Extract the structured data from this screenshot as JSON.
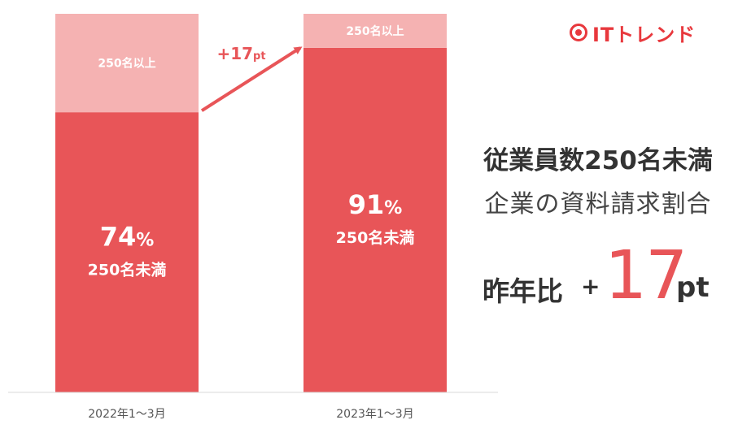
{
  "logo": {
    "text": "ITトレンド"
  },
  "headline": {
    "line1": "従業員数250名未満",
    "line2": "企業の資料請求割合"
  },
  "yoy": {
    "label": "昨年比",
    "sign": "+",
    "value": "17",
    "unit": "pt"
  },
  "colors": {
    "under_250": "#e85558",
    "over_250": "#f5b2b2",
    "accent": "#e8383d",
    "text_dark": "#333333"
  },
  "chart_data": {
    "type": "bar",
    "stacked": true,
    "ylim": [
      0,
      100
    ],
    "categories": [
      "2022年1〜3月",
      "2023年1〜3月"
    ],
    "series": [
      {
        "name": "250名未満",
        "values": [
          74,
          91
        ],
        "color": "#e85558"
      },
      {
        "name": "250名以上",
        "values": [
          26,
          9
        ],
        "color": "#f5b2b2"
      }
    ],
    "data_labels": {
      "under_250_percent": [
        "74%",
        "91%"
      ],
      "under_250_name": "250名未満",
      "over_250_name": "250名以上"
    },
    "annotation": {
      "text": "+17",
      "unit": "pt"
    },
    "grid": false,
    "legend": "none"
  }
}
